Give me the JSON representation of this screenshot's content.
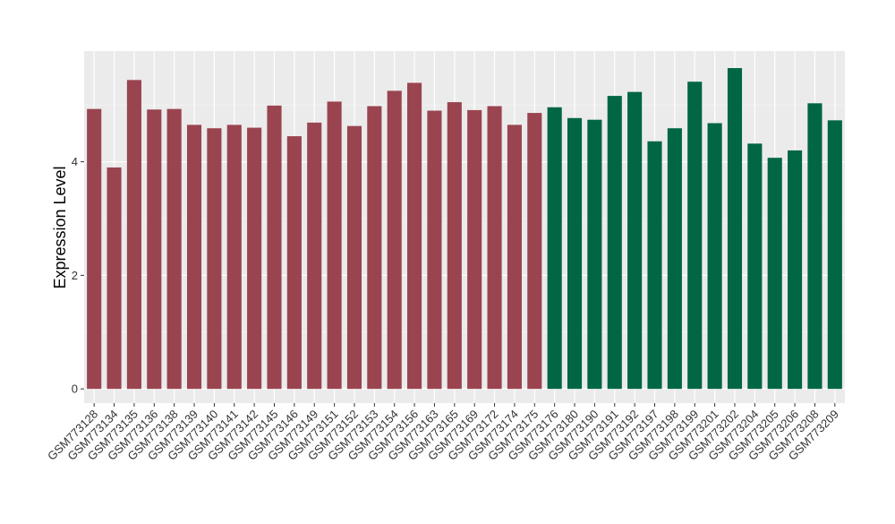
{
  "chart_data": {
    "type": "bar",
    "title": "",
    "xlabel": "",
    "ylabel": "Expression Level",
    "ylim": [
      -0.25,
      5.95
    ],
    "yticks": [
      0,
      2,
      4
    ],
    "grid": true,
    "legend": "none",
    "categories": [
      "GSM773128",
      "GSM773134",
      "GSM773135",
      "GSM773136",
      "GSM773138",
      "GSM773139",
      "GSM773140",
      "GSM773141",
      "GSM773142",
      "GSM773145",
      "GSM773146",
      "GSM773149",
      "GSM773151",
      "GSM773152",
      "GSM773153",
      "GSM773154",
      "GSM773156",
      "GSM773163",
      "GSM773165",
      "GSM773169",
      "GSM773172",
      "GSM773174",
      "GSM773175",
      "GSM773176",
      "GSM773180",
      "GSM773190",
      "GSM773191",
      "GSM773192",
      "GSM773197",
      "GSM773198",
      "GSM773199",
      "GSM773201",
      "GSM773202",
      "GSM773204",
      "GSM773205",
      "GSM773206",
      "GSM773208",
      "GSM773209"
    ],
    "values": [
      4.93,
      3.9,
      5.44,
      4.92,
      4.93,
      4.65,
      4.59,
      4.65,
      4.6,
      4.99,
      4.45,
      4.69,
      5.06,
      4.63,
      4.98,
      5.25,
      5.39,
      4.9,
      5.05,
      4.91,
      4.98,
      4.65,
      4.86,
      4.96,
      4.77,
      4.74,
      5.16,
      5.23,
      4.36,
      4.59,
      5.41,
      4.68,
      5.65,
      4.32,
      4.07,
      4.2,
      5.03,
      4.73
    ],
    "group_colors": [
      "#9a4450",
      "#006644"
    ],
    "group_sizes": [
      23,
      15
    ]
  }
}
